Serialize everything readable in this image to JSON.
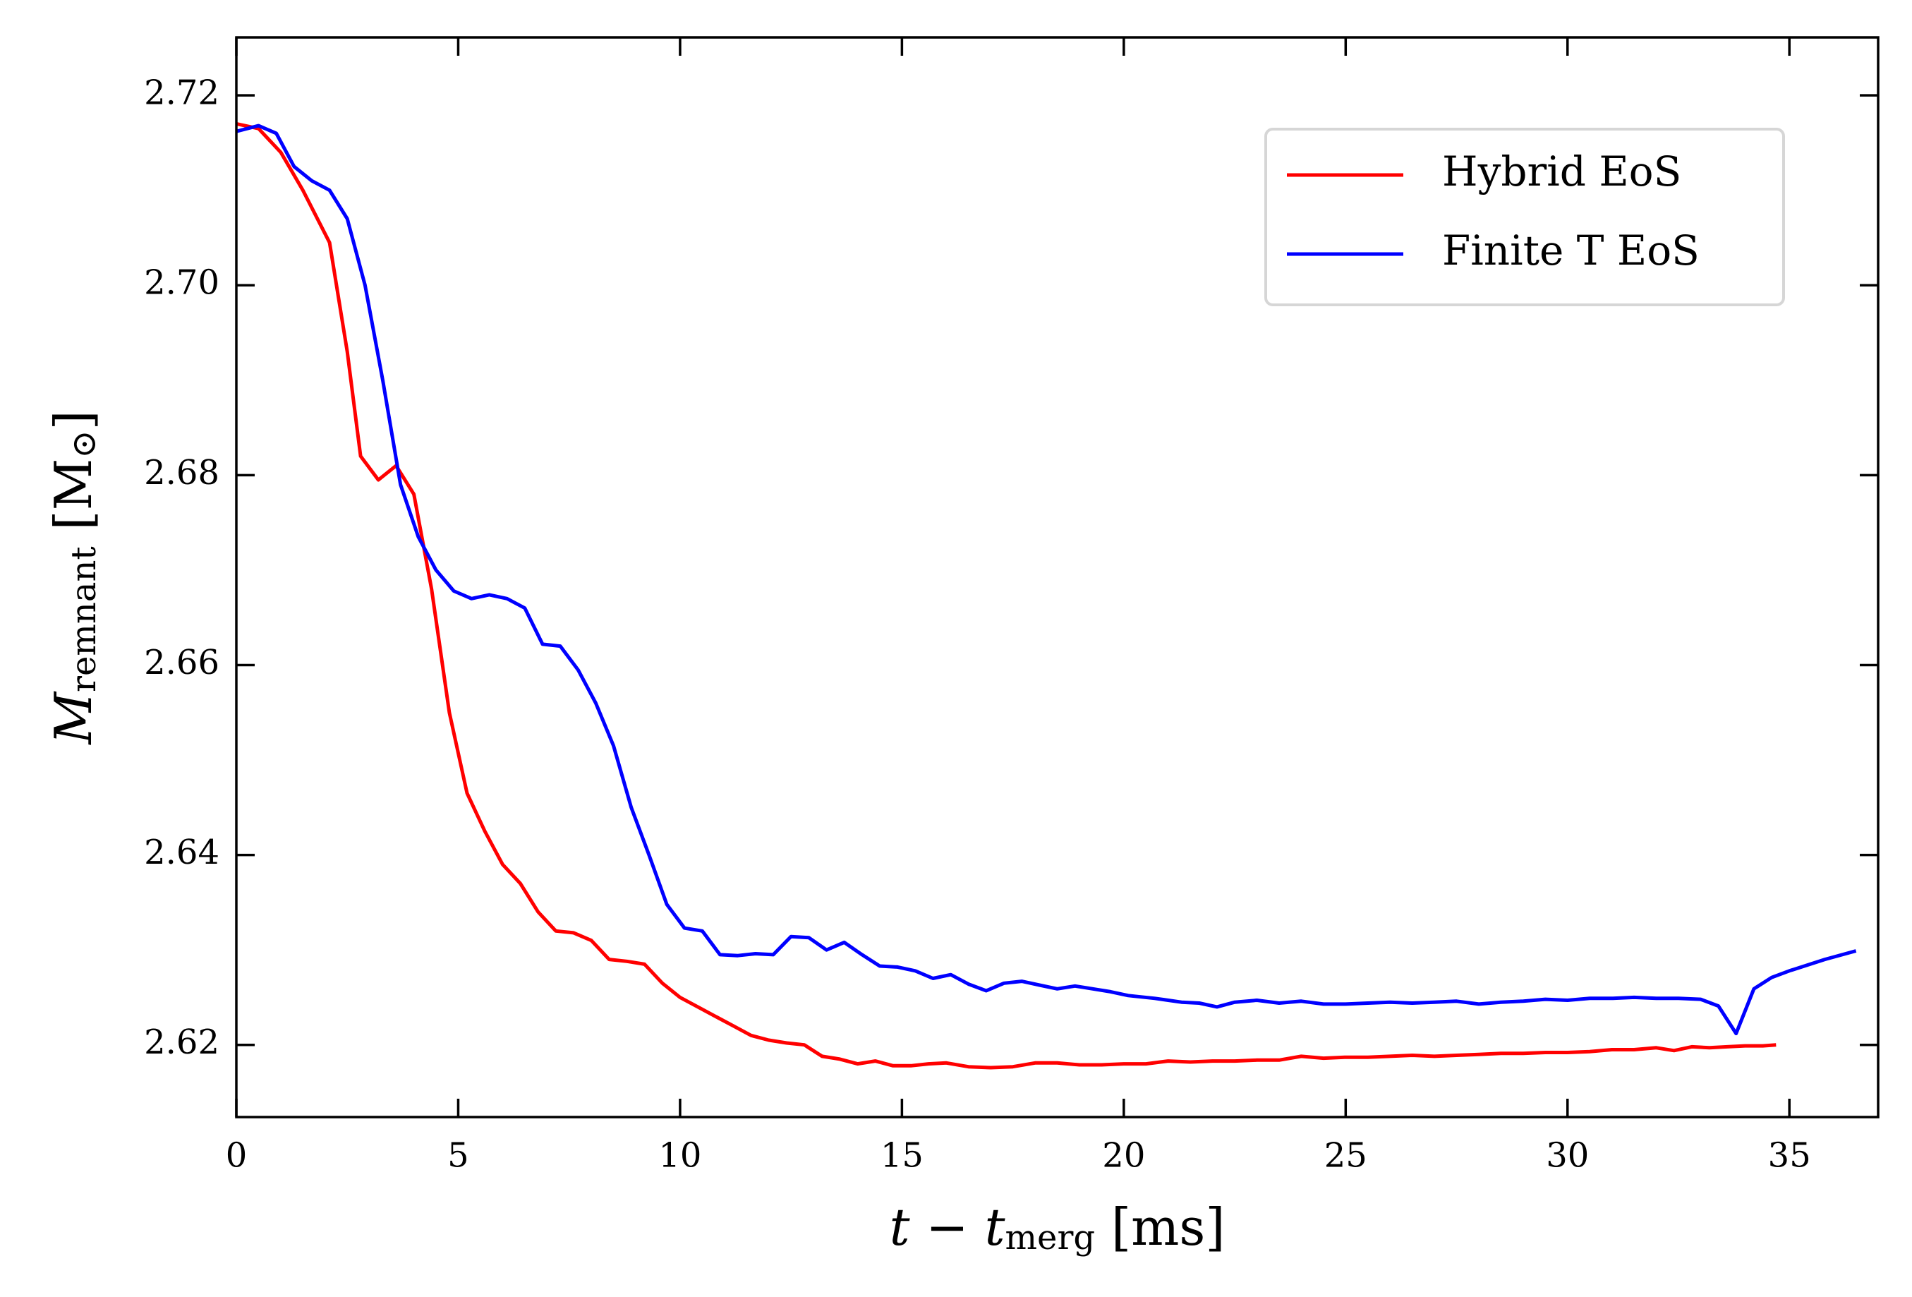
{
  "chart_data": {
    "type": "line",
    "xlabel": [
      "t − t",
      "merg",
      " [ms]"
    ],
    "ylabel": [
      "M",
      "remnant",
      " [M",
      "⊙",
      "]"
    ],
    "xlim": [
      0,
      37
    ],
    "ylim": [
      2.6124,
      2.7261
    ],
    "xticks": [
      0,
      5,
      10,
      15,
      20,
      25,
      30,
      35
    ],
    "yticks": [
      2.62,
      2.64,
      2.66,
      2.68,
      {
        "value": 2.7,
        "label": "2.70"
      },
      2.72
    ],
    "legend": "upper right",
    "series": [
      {
        "name": "Hybrid EoS",
        "color": "#ff0000",
        "x": [
          0,
          0.5,
          1.0,
          1.5,
          2.1,
          2.5,
          2.8,
          3.2,
          3.6,
          4.0,
          4.4,
          4.8,
          5.2,
          5.6,
          6.0,
          6.4,
          6.8,
          7.2,
          7.6,
          8.0,
          8.4,
          8.8,
          9.2,
          9.6,
          10.0,
          10.4,
          10.8,
          11.2,
          11.6,
          12.0,
          12.4,
          12.8,
          13.2,
          13.6,
          14.0,
          14.4,
          14.8,
          15.2,
          15.6,
          16.0,
          16.5,
          17.0,
          17.5,
          18.0,
          18.5,
          19.0,
          19.5,
          20.0,
          20.5,
          21.0,
          21.5,
          22.0,
          22.5,
          23.0,
          23.5,
          24.0,
          24.5,
          25.0,
          25.5,
          26.0,
          26.5,
          27.0,
          27.5,
          28.0,
          28.5,
          29.0,
          29.5,
          30.0,
          30.5,
          31.0,
          31.5,
          32.0,
          32.4,
          32.8,
          33.2,
          33.6,
          34.0,
          34.4,
          34.7
        ],
        "values": [
          2.717,
          2.7165,
          2.714,
          2.71,
          2.7045,
          2.693,
          2.682,
          2.6795,
          2.681,
          2.678,
          2.668,
          2.655,
          2.6465,
          2.6425,
          2.639,
          2.637,
          2.634,
          2.632,
          2.6318,
          2.631,
          2.629,
          2.6288,
          2.6285,
          2.6265,
          2.625,
          2.624,
          2.623,
          2.622,
          2.621,
          2.6205,
          2.6202,
          2.62,
          2.6188,
          2.6185,
          2.618,
          2.6183,
          2.6178,
          2.6178,
          2.618,
          2.6181,
          2.6177,
          2.6176,
          2.6177,
          2.6181,
          2.6181,
          2.6179,
          2.6179,
          2.618,
          2.618,
          2.6183,
          2.6182,
          2.6183,
          2.6183,
          2.6184,
          2.6184,
          2.6188,
          2.6186,
          2.6187,
          2.6187,
          2.6188,
          2.6189,
          2.6188,
          2.6189,
          2.619,
          2.6191,
          2.6191,
          2.6192,
          2.6192,
          2.6193,
          2.6195,
          2.6195,
          2.6197,
          2.6194,
          2.6198,
          2.6197,
          2.6198,
          2.6199,
          2.6199,
          2.62
        ]
      },
      {
        "name": "Finite T EoS",
        "color": "#0000ff",
        "x": [
          0,
          0.5,
          0.9,
          1.3,
          1.7,
          2.1,
          2.5,
          2.9,
          3.3,
          3.7,
          4.1,
          4.5,
          4.9,
          5.3,
          5.7,
          6.1,
          6.5,
          6.9,
          7.3,
          7.7,
          8.1,
          8.5,
          8.9,
          9.3,
          9.7,
          10.1,
          10.5,
          10.9,
          11.3,
          11.7,
          12.1,
          12.5,
          12.9,
          13.3,
          13.7,
          14.1,
          14.5,
          14.9,
          15.3,
          15.7,
          16.1,
          16.5,
          16.9,
          17.3,
          17.7,
          18.1,
          18.5,
          18.9,
          19.3,
          19.7,
          20.1,
          20.7,
          21.3,
          21.7,
          22.1,
          22.5,
          23.0,
          23.5,
          24.0,
          24.5,
          25.0,
          25.5,
          26.0,
          26.5,
          27.0,
          27.5,
          28.0,
          28.5,
          29.0,
          29.5,
          30.0,
          30.5,
          31.0,
          31.5,
          32.0,
          32.5,
          33.0,
          33.4,
          33.8,
          34.2,
          34.6,
          35.0,
          35.8,
          36.5
        ],
        "values": [
          2.7162,
          2.7168,
          2.716,
          2.7125,
          2.711,
          2.71,
          2.707,
          2.7,
          2.69,
          2.679,
          2.6735,
          2.67,
          2.6678,
          2.667,
          2.6674,
          2.667,
          2.666,
          2.6622,
          2.662,
          2.6595,
          2.656,
          2.6515,
          2.645,
          2.64,
          2.6348,
          2.6323,
          2.632,
          2.6295,
          2.6294,
          2.6296,
          2.6295,
          2.6314,
          2.6313,
          2.63,
          2.6308,
          2.6295,
          2.6283,
          2.6282,
          2.6278,
          2.627,
          2.6274,
          2.6264,
          2.6257,
          2.6265,
          2.6267,
          2.6263,
          2.6259,
          2.6262,
          2.6259,
          2.6256,
          2.6252,
          2.6249,
          2.6245,
          2.6244,
          2.624,
          2.6245,
          2.6247,
          2.6244,
          2.6246,
          2.6243,
          2.6243,
          2.6244,
          2.6245,
          2.6244,
          2.6245,
          2.6246,
          2.6243,
          2.6245,
          2.6246,
          2.6248,
          2.6247,
          2.6249,
          2.6249,
          2.625,
          2.6249,
          2.6249,
          2.6248,
          2.6241,
          2.6212,
          2.6259,
          2.6271,
          2.6278,
          2.629,
          2.6299
        ]
      }
    ]
  }
}
